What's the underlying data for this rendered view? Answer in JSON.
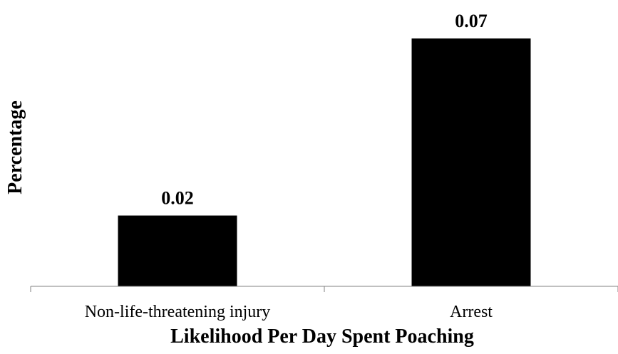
{
  "chart_data": {
    "type": "bar",
    "categories": [
      "Non-life-threatening injury",
      "Arrest"
    ],
    "values": [
      0.02,
      0.07
    ],
    "data_labels": [
      "0.02",
      "0.07"
    ],
    "title": "",
    "xlabel": "Likelihood Per Day Spent Poaching",
    "ylabel": "Percentage",
    "ylim": [
      0,
      0.07
    ],
    "grid": false,
    "legend": "none",
    "bar_color": "#000000",
    "axis_color": "#808080"
  }
}
